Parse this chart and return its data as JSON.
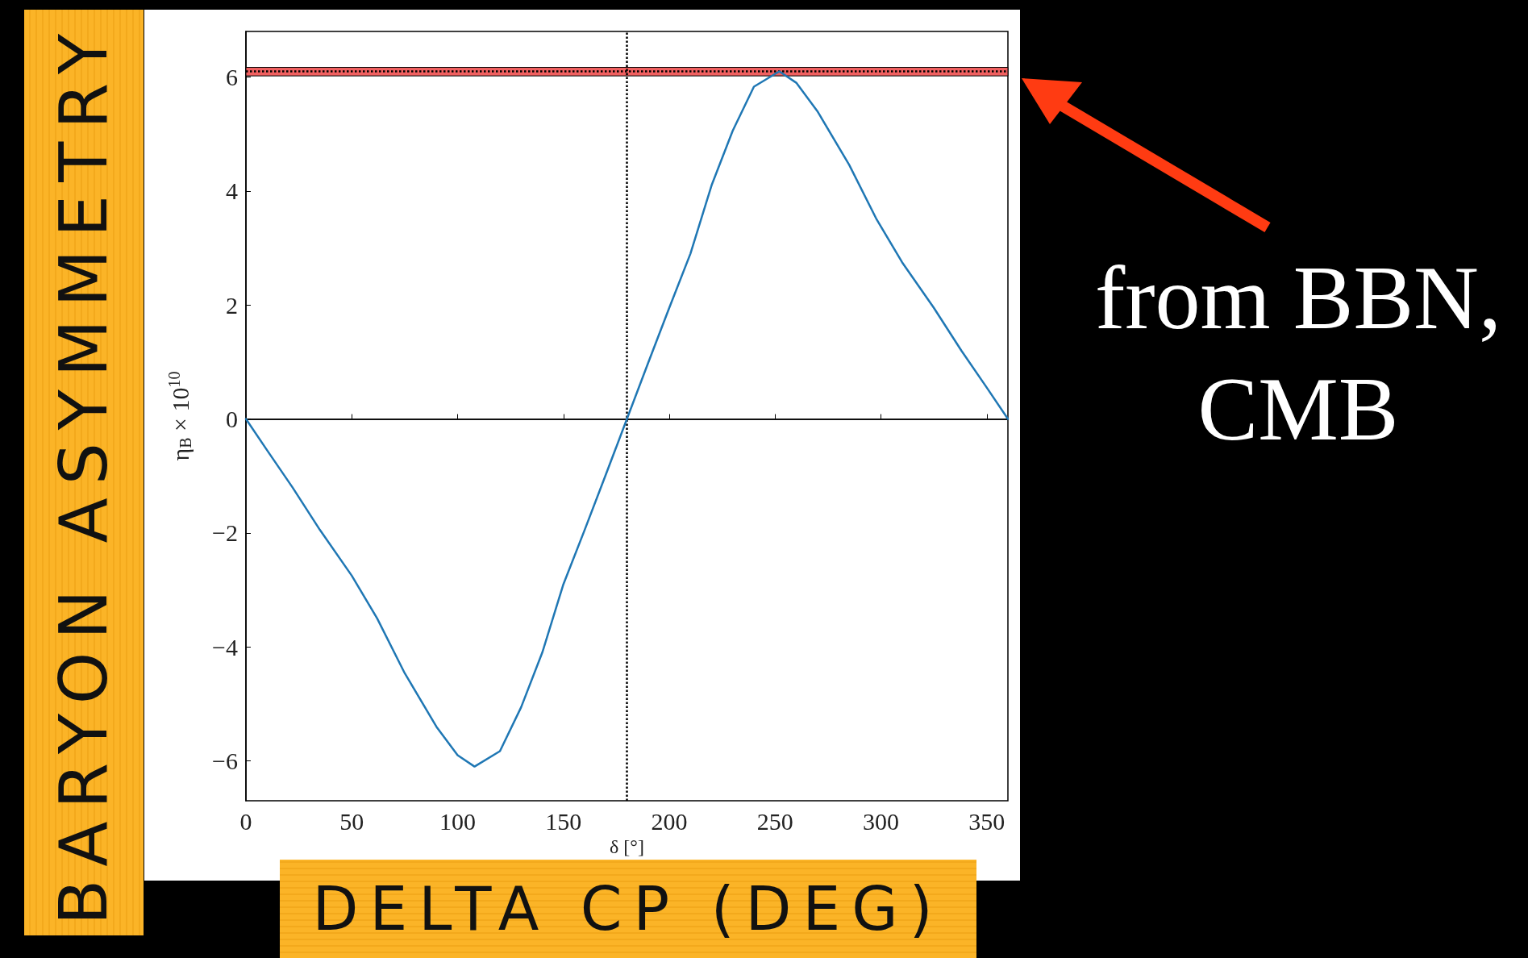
{
  "chart_data": {
    "type": "line",
    "xlabel": "δ [°]",
    "ylabel": "η$_{B}$ × 10$^{10}$",
    "annotations": [
      "BARYON ASYMMETRY",
      "DELTA CP (DEG)",
      "from BBN, CMB"
    ],
    "series": [
      {
        "color": "#1f77b4",
        "x": [
          0,
          10,
          22,
          35,
          50,
          62,
          75,
          90,
          100,
          108,
          120,
          130,
          140,
          150,
          160,
          170,
          180,
          190,
          200,
          210,
          220,
          230,
          240,
          252,
          260,
          270,
          285,
          298,
          310,
          325,
          338,
          350,
          360
        ],
        "values": [
          0,
          -0.55,
          -1.2,
          -1.95,
          -2.75,
          -3.5,
          -4.46,
          -5.4,
          -5.9,
          -6.1,
          -5.83,
          -5.06,
          -4.1,
          -2.9,
          -1.95,
          -0.98,
          0,
          0.98,
          1.95,
          2.9,
          4.1,
          5.06,
          5.83,
          6.1,
          5.9,
          5.4,
          4.46,
          3.5,
          2.75,
          1.95,
          1.2,
          0.55,
          0
        ]
      }
    ],
    "xlim": [
      0,
      360
    ],
    "xticks": [
      0,
      50,
      100,
      150,
      200,
      250,
      300,
      350
    ],
    "ylim": [
      -6.7,
      6.8
    ],
    "yticks": [
      -6,
      -4,
      -2,
      0,
      2,
      4,
      6
    ],
    "ref_lines": [
      {
        "axis": "y",
        "value": 0,
        "color": "#000000",
        "line_style": "solid"
      },
      {
        "axis": "x",
        "value": 180,
        "color": "#000000",
        "line_style": "dotted"
      },
      {
        "axis": "y",
        "value": 6.1,
        "color": "#000000",
        "line_style": "dotted"
      }
    ],
    "bands": [
      {
        "axis": "y",
        "from": 6.02,
        "to": 6.17,
        "color": "#f06060"
      }
    ],
    "grid": false,
    "marker": "none",
    "line_style": "solid"
  }
}
